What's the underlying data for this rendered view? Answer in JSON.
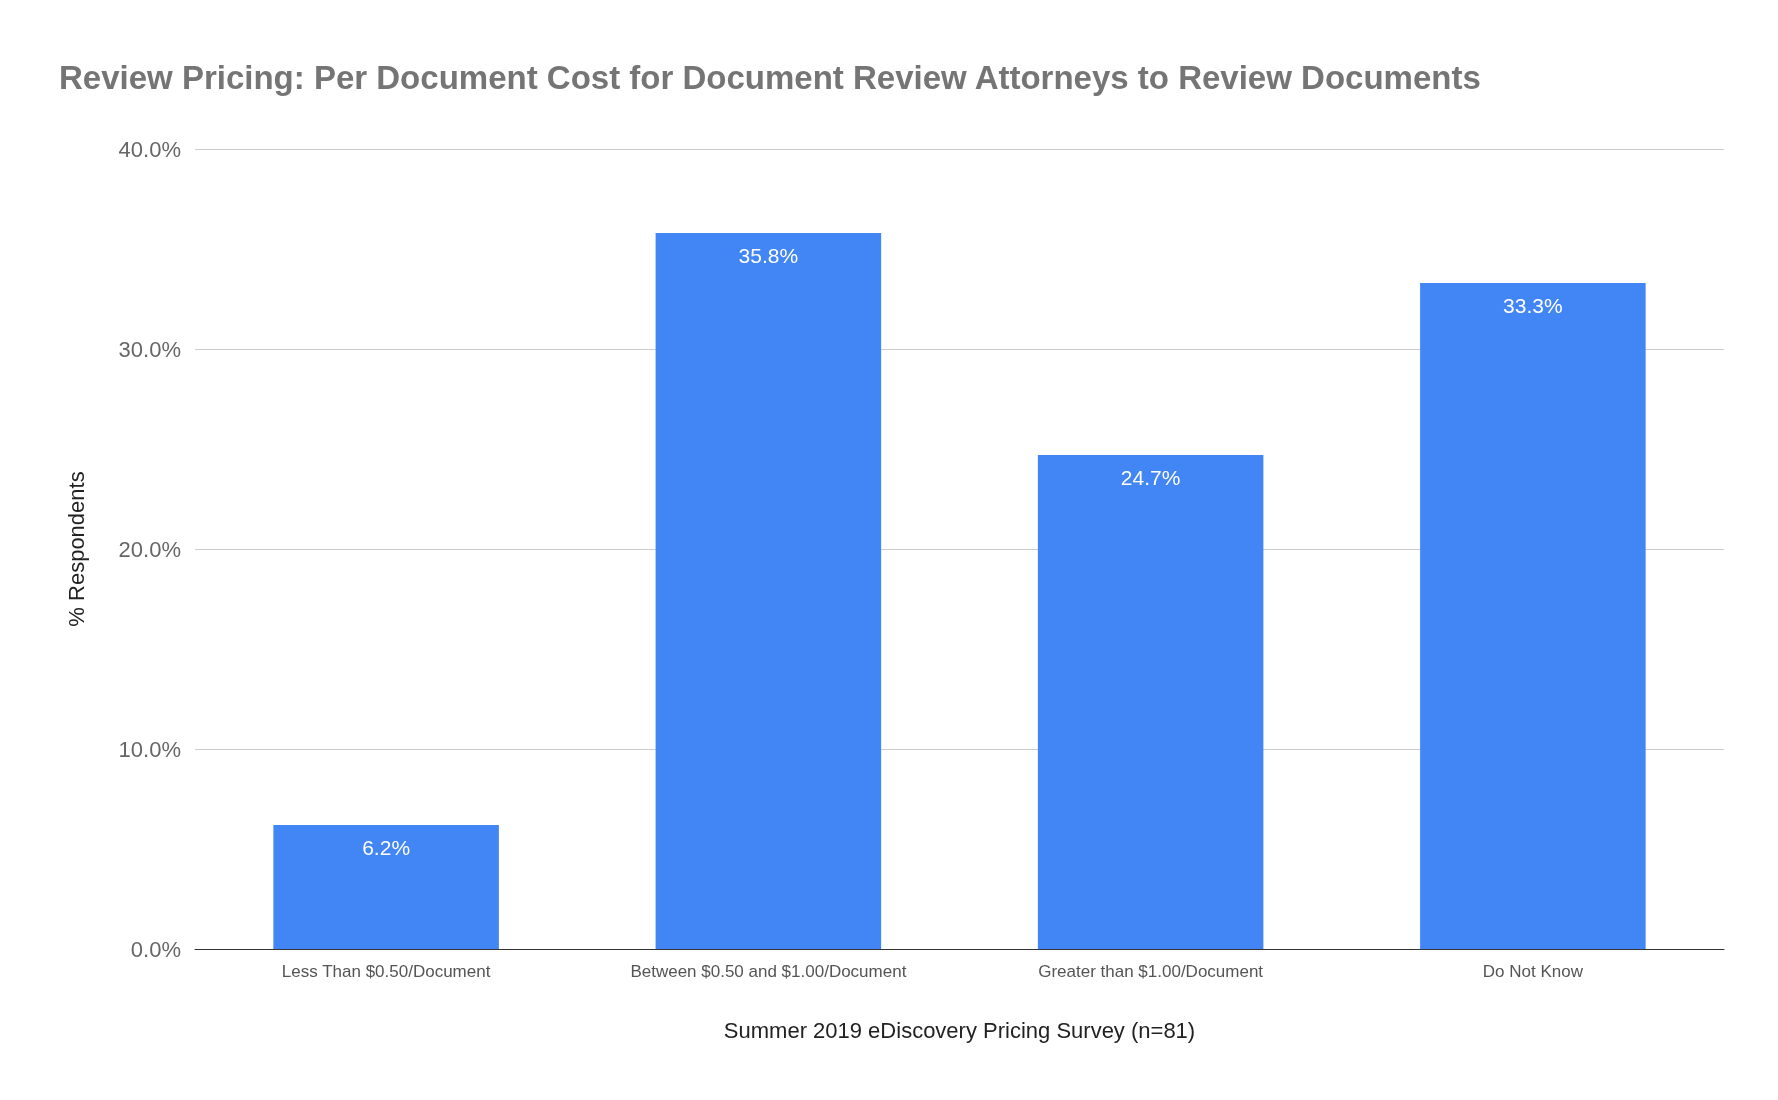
{
  "chart_data": {
    "type": "bar",
    "title": "Review Pricing: Per Document Cost for Document Review Attorneys to Review Documents",
    "xlabel": "Summer 2019 eDiscovery Pricing Survey (n=81)",
    "ylabel": "% Respondents",
    "categories": [
      "Less Than $0.50/Document",
      "Between $0.50 and $1.00/Document",
      "Greater than $1.00/Document",
      "Do Not Know"
    ],
    "values": [
      6.2,
      35.8,
      24.7,
      33.3
    ],
    "value_labels": [
      "6.2%",
      "35.8%",
      "24.7%",
      "33.3%"
    ],
    "color": "#4285f4",
    "ylim": [
      0,
      40
    ],
    "yticks": [
      {
        "value": 0,
        "label": "0.0%"
      },
      {
        "value": 10,
        "label": "10.0%"
      },
      {
        "value": 20,
        "label": "20.0%"
      },
      {
        "value": 30,
        "label": "30.0%"
      },
      {
        "value": 40,
        "label": "40.0%"
      }
    ],
    "grid": "y"
  }
}
